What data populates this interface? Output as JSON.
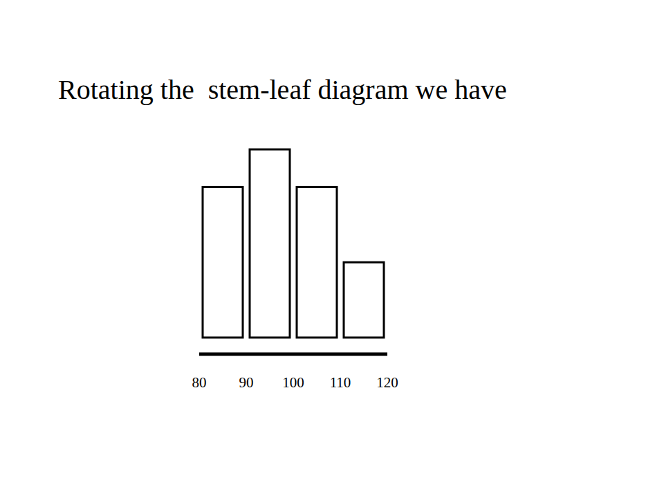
{
  "chart_data": {
    "type": "histogram",
    "title": "Rotating the  stem-leaf diagram we have",
    "bins": [
      80,
      90,
      100,
      110,
      120
    ],
    "values": [
      4,
      5,
      4,
      2
    ],
    "color": "#ffffff",
    "xlim": [
      80,
      120
    ],
    "xticks": [
      80,
      90,
      100,
      110,
      120
    ],
    "ylim": [
      0,
      5
    ],
    "tick_labels": "x",
    "grid": false
  }
}
